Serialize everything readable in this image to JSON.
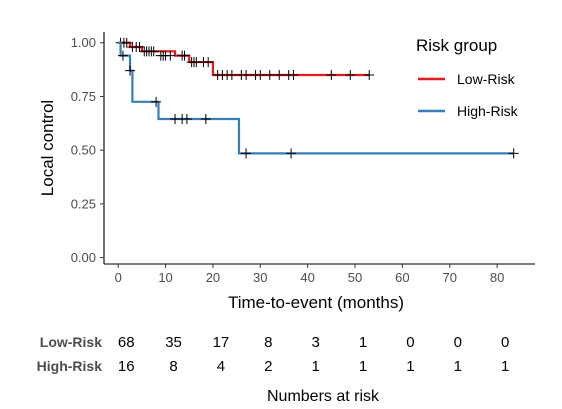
{
  "chart_data": {
    "type": "line",
    "subtype": "kaplan-meier",
    "xlabel": "Time-to-event (months)",
    "ylabel": "Local control",
    "xlim": [
      -3,
      88
    ],
    "ylim": [
      -0.03,
      1.05
    ],
    "x_ticks": [
      0,
      10,
      20,
      30,
      40,
      50,
      60,
      70,
      80
    ],
    "y_ticks": [
      0.0,
      0.25,
      0.5,
      0.75,
      1.0
    ],
    "y_tick_labels": [
      "0.00",
      "0.25",
      "0.50",
      "0.75",
      "1.00"
    ],
    "grid": false,
    "legend": {
      "title": "Risk group",
      "position": "top-right"
    },
    "series": [
      {
        "name": "Low-Risk",
        "color": "#e41a1c",
        "steps": [
          [
            0,
            1.0
          ],
          [
            2.5,
            0.98
          ],
          [
            5,
            0.96
          ],
          [
            12,
            0.94
          ],
          [
            15,
            0.91
          ],
          [
            20,
            0.85
          ],
          [
            53,
            0.85
          ]
        ],
        "censored": [
          [
            0.5,
            1.0
          ],
          [
            1.2,
            1.0
          ],
          [
            1.8,
            1.0
          ],
          [
            3,
            0.98
          ],
          [
            3.8,
            0.98
          ],
          [
            4.5,
            0.98
          ],
          [
            5.5,
            0.96
          ],
          [
            6,
            0.96
          ],
          [
            6.5,
            0.96
          ],
          [
            7,
            0.96
          ],
          [
            7.5,
            0.96
          ],
          [
            9,
            0.94
          ],
          [
            9.5,
            0.94
          ],
          [
            10,
            0.94
          ],
          [
            11,
            0.94
          ],
          [
            13.5,
            0.94
          ],
          [
            14,
            0.94
          ],
          [
            15.5,
            0.91
          ],
          [
            16,
            0.91
          ],
          [
            16.5,
            0.91
          ],
          [
            18,
            0.91
          ],
          [
            19,
            0.91
          ],
          [
            21,
            0.85
          ],
          [
            22,
            0.85
          ],
          [
            23,
            0.85
          ],
          [
            24,
            0.85
          ],
          [
            26,
            0.85
          ],
          [
            27,
            0.85
          ],
          [
            29,
            0.85
          ],
          [
            30,
            0.85
          ],
          [
            32,
            0.85
          ],
          [
            34,
            0.85
          ],
          [
            36,
            0.85
          ],
          [
            37,
            0.85
          ],
          [
            45,
            0.85
          ],
          [
            49,
            0.85
          ],
          [
            53,
            0.85
          ]
        ]
      },
      {
        "name": "High-Risk",
        "color": "#377eb8",
        "steps": [
          [
            0,
            1.0
          ],
          [
            0.5,
            0.94
          ],
          [
            2.5,
            0.87
          ],
          [
            3,
            0.725
          ],
          [
            8.5,
            0.645
          ],
          [
            25.5,
            0.485
          ],
          [
            83.5,
            0.485
          ]
        ],
        "censored": [
          [
            1,
            0.94
          ],
          [
            2.5,
            0.87
          ],
          [
            8,
            0.725
          ],
          [
            12,
            0.645
          ],
          [
            13.5,
            0.645
          ],
          [
            14.5,
            0.645
          ],
          [
            18.5,
            0.645
          ],
          [
            27,
            0.485
          ],
          [
            36.5,
            0.485
          ],
          [
            83.5,
            0.485
          ]
        ]
      }
    ],
    "risk_table": {
      "title": "Numbers at risk",
      "times": [
        0,
        10,
        20,
        30,
        40,
        50,
        60,
        70,
        80
      ],
      "rows": [
        {
          "label": "Low-Risk",
          "counts": [
            "68",
            "35",
            "17",
            "8",
            "3",
            "1",
            "0",
            "0",
            "0"
          ]
        },
        {
          "label": "High-Risk",
          "counts": [
            "16",
            "8",
            "4",
            "2",
            "1",
            "1",
            "1",
            "1",
            "1"
          ]
        }
      ]
    }
  }
}
